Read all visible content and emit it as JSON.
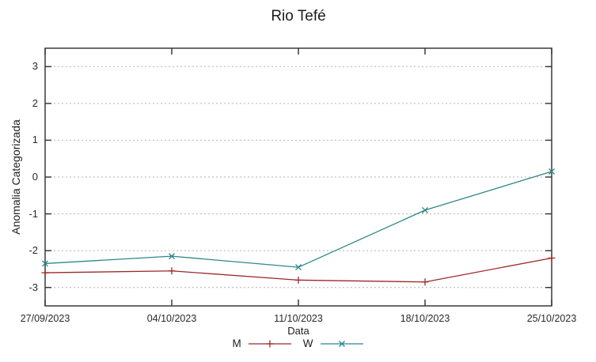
{
  "chart_data": {
    "type": "line",
    "title": "Rio Tefé",
    "xlabel": "Data",
    "ylabel": "Anomalia Categorizada",
    "categories": [
      "27/09/2023",
      "04/10/2023",
      "11/10/2023",
      "18/10/2023",
      "25/10/2023"
    ],
    "series": [
      {
        "name": "M",
        "color": "#9c2a2a",
        "marker": "plus",
        "values": [
          -2.6,
          -2.55,
          -2.8,
          -2.85,
          -2.2
        ]
      },
      {
        "name": "W",
        "color": "#2e8787",
        "marker": "cross",
        "values": [
          -2.35,
          -2.15,
          -2.45,
          -0.9,
          0.15
        ]
      }
    ],
    "ylim": [
      -3.5,
      3.5
    ],
    "yticks": [
      -3,
      -2,
      -1,
      0,
      1,
      2,
      3
    ],
    "grid": "horizontal-dotted",
    "legend_position": "bottom-center"
  },
  "colors": {
    "series_m": "#9c2a2a",
    "series_w": "#2e8787",
    "grid": "#b3b3b3",
    "axis": "#3a3a3a",
    "text": "#1c1c1c",
    "background": "#ffffff"
  }
}
